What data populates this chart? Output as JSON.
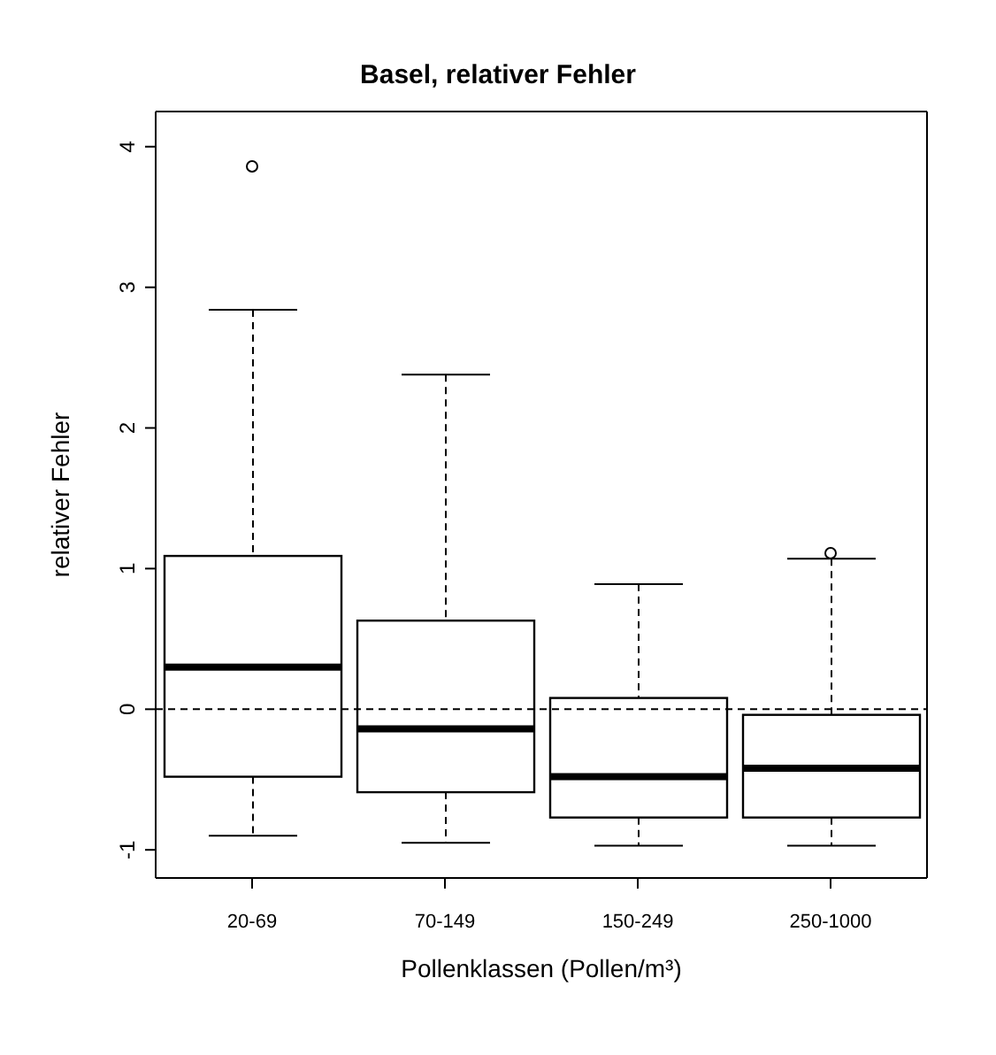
{
  "chart_data": {
    "type": "box",
    "title": "Basel, relativer Fehler",
    "xlabel": "Pollenklassen (Pollen/m³)",
    "ylabel": "relativer Fehler",
    "categories": [
      "20-69",
      "70-149",
      "150-249",
      "250-1000"
    ],
    "boxes": [
      {
        "low": -0.9,
        "q1": -0.48,
        "median": 0.3,
        "q3": 1.09,
        "high": 2.84,
        "outliers": [
          3.86
        ]
      },
      {
        "low": -0.95,
        "q1": -0.59,
        "median": -0.14,
        "q3": 0.63,
        "high": 2.38
      },
      {
        "low": -0.97,
        "q1": -0.77,
        "median": -0.48,
        "q3": 0.08,
        "high": 0.89
      },
      {
        "low": -0.97,
        "q1": -0.77,
        "median": -0.42,
        "q3": -0.04,
        "high": 1.07,
        "outliers": [
          1.11
        ]
      }
    ],
    "ylim": [
      -1.2,
      4.25
    ],
    "yticks": [
      -1,
      0,
      1,
      2,
      3,
      4
    ],
    "ref_lines": [
      {
        "axis": "y",
        "value": 0,
        "line_style": "dashed"
      }
    ]
  }
}
